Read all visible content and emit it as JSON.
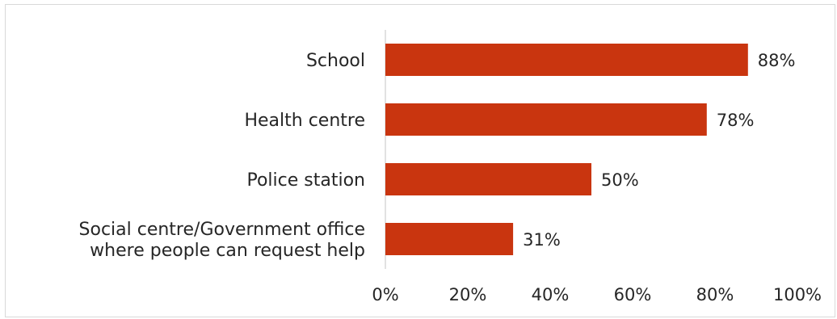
{
  "chart_data": {
    "type": "bar",
    "orientation": "horizontal",
    "title": "",
    "xlabel": "",
    "ylabel": "",
    "categories": [
      [
        "School"
      ],
      [
        "Health centre"
      ],
      [
        "Police station"
      ],
      [
        "Social centre/Government office",
        "where people can request help"
      ]
    ],
    "values": [
      88,
      78,
      50,
      31
    ],
    "data_labels": [
      "88%",
      "78%",
      "50%",
      "31%"
    ],
    "xlim": [
      0,
      100
    ],
    "xticks": [
      0,
      20,
      40,
      60,
      80,
      100
    ],
    "xtick_labels": [
      "0%",
      "20%",
      "40%",
      "60%",
      "80%",
      "100%"
    ],
    "grid": false,
    "legend": "none",
    "bar_color": "#c9350f",
    "axis_color": "#d9d9d9"
  }
}
